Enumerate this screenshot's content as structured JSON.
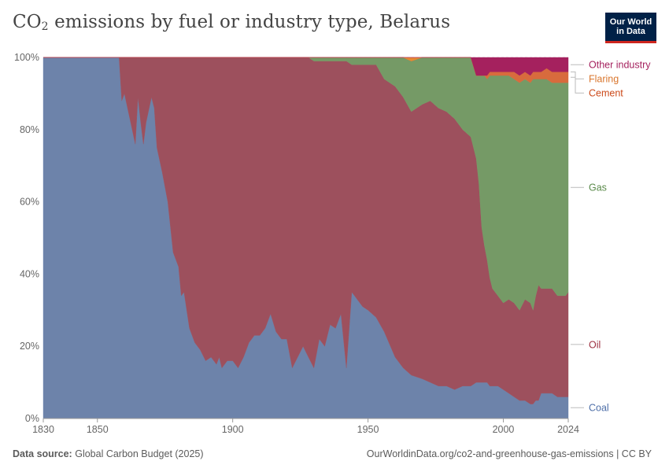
{
  "header": {
    "title_main": "CO",
    "title_sub": "2",
    "title_rest": " emissions by fuel or industry type, Belarus",
    "logo_line1": "Our World",
    "logo_line2": "in Data"
  },
  "footer": {
    "source_label": "Data source:",
    "source_text": "Global Carbon Budget (2025)",
    "url_license": "OurWorldinData.org/co2-and-greenhouse-gas-emissions | CC BY"
  },
  "chart_data": {
    "type": "area",
    "stacked": true,
    "normalized": true,
    "title": "CO₂ emissions by fuel or industry type, Belarus",
    "xlim": [
      1830,
      2024
    ],
    "ylim": [
      0,
      100
    ],
    "x_ticks": [
      1830,
      1850,
      1900,
      1950,
      2000,
      2024
    ],
    "y_ticks": [
      {
        "value": 0,
        "label": "0%"
      },
      {
        "value": 20,
        "label": "20%"
      },
      {
        "value": 40,
        "label": "40%"
      },
      {
        "value": 60,
        "label": "60%"
      },
      {
        "value": 80,
        "label": "80%"
      },
      {
        "value": 100,
        "label": "100%"
      }
    ],
    "x": [
      1830,
      1858,
      1859,
      1860,
      1862,
      1864,
      1865,
      1866,
      1867,
      1868,
      1870,
      1871,
      1872,
      1874,
      1876,
      1878,
      1880,
      1881,
      1882,
      1884,
      1886,
      1888,
      1890,
      1892,
      1894,
      1895,
      1896,
      1898,
      1900,
      1902,
      1904,
      1906,
      1908,
      1910,
      1912,
      1914,
      1916,
      1918,
      1920,
      1922,
      1924,
      1926,
      1928,
      1930,
      1932,
      1934,
      1936,
      1938,
      1940,
      1942,
      1944,
      1945,
      1946,
      1948,
      1950,
      1953,
      1956,
      1960,
      1963,
      1966,
      1970,
      1973,
      1976,
      1979,
      1982,
      1985,
      1988,
      1990,
      1991,
      1992,
      1993,
      1994,
      1995,
      1996,
      1998,
      2000,
      2002,
      2004,
      2006,
      2008,
      2010,
      2011,
      2012,
      2013,
      2014,
      2016,
      2018,
      2020,
      2022,
      2023,
      2024
    ],
    "series": [
      {
        "name": "Coal",
        "color": "#6d83aa",
        "values": [
          100,
          100,
          88,
          90,
          83,
          76,
          89,
          82,
          76,
          82,
          89,
          86,
          75,
          68,
          60,
          46,
          42,
          34,
          35,
          25,
          21,
          19,
          16,
          17,
          15,
          17,
          14,
          16,
          16,
          14,
          17,
          21,
          23,
          23,
          25,
          29,
          24,
          22,
          22,
          14,
          17,
          20,
          17,
          14,
          22,
          20,
          26,
          25,
          29,
          14,
          35,
          34,
          33,
          31,
          30,
          28,
          24,
          17,
          14,
          12,
          11,
          10,
          9,
          9,
          8,
          9,
          9,
          10,
          10,
          10,
          10,
          10,
          9,
          9,
          9,
          8,
          7,
          6,
          5,
          5,
          4,
          4,
          5,
          5,
          7,
          7,
          7,
          6,
          6,
          6,
          6
        ]
      },
      {
        "name": "Oil",
        "color": "#9d505d",
        "values": [
          0,
          0,
          12,
          10,
          17,
          24,
          11,
          18,
          24,
          18,
          11,
          14,
          25,
          32,
          40,
          54,
          58,
          66,
          65,
          75,
          79,
          81,
          84,
          83,
          85,
          83,
          86,
          84,
          84,
          86,
          83,
          79,
          77,
          77,
          75,
          71,
          76,
          78,
          78,
          86,
          83,
          80,
          83,
          85,
          77,
          79,
          73,
          74,
          70,
          85,
          63,
          64,
          65,
          67,
          68,
          70,
          70,
          75,
          75,
          73,
          76,
          78,
          77,
          76,
          75,
          71,
          69,
          62,
          55,
          43,
          38,
          34,
          30,
          27,
          25,
          24,
          26,
          26,
          25,
          28,
          28,
          26,
          29,
          32,
          29,
          29,
          29,
          28,
          28,
          28,
          29
        ]
      },
      {
        "name": "Gas",
        "color": "#759a66",
        "values": [
          0,
          0,
          0,
          0,
          0,
          0,
          0,
          0,
          0,
          0,
          0,
          0,
          0,
          0,
          0,
          0,
          0,
          0,
          0,
          0,
          0,
          0,
          0,
          0,
          0,
          0,
          0,
          0,
          0,
          0,
          0,
          0,
          0,
          0,
          0,
          0,
          0,
          0,
          0,
          0,
          0,
          0,
          0,
          1,
          1,
          1,
          1,
          1,
          1,
          1,
          2,
          2,
          2,
          2,
          2,
          2,
          6,
          8,
          11,
          14,
          13,
          12,
          14,
          15,
          17,
          20,
          22,
          23,
          30,
          42,
          47,
          50,
          56,
          59,
          61,
          63,
          62,
          62,
          63,
          61,
          61,
          64,
          60,
          57,
          58,
          58,
          57,
          59,
          59,
          59,
          58
        ]
      },
      {
        "name": "Cement",
        "color": "#d86b3d",
        "values": [
          0,
          0,
          0,
          0,
          0,
          0,
          0,
          0,
          0,
          0,
          0,
          0,
          0,
          0,
          0,
          0,
          0,
          0,
          0,
          0,
          0,
          0,
          0,
          0,
          0,
          0,
          0,
          0,
          0,
          0,
          0,
          0,
          0,
          0,
          0,
          0,
          0,
          0,
          0,
          0,
          0,
          0,
          0,
          0,
          0,
          0,
          0,
          0,
          0,
          0,
          0,
          0,
          0,
          0,
          0,
          0,
          0,
          0,
          0,
          0,
          0,
          0,
          0,
          0,
          0,
          0,
          0,
          0,
          0,
          0,
          0,
          1,
          1,
          1,
          1,
          1,
          1,
          2,
          2,
          2,
          2,
          2,
          2,
          2,
          2,
          3,
          3,
          3,
          3,
          3,
          3
        ]
      },
      {
        "name": "Flaring",
        "color": "#e68a33",
        "values": [
          0,
          0,
          0,
          0,
          0,
          0,
          0,
          0,
          0,
          0,
          0,
          0,
          0,
          0,
          0,
          0,
          0,
          0,
          0,
          0,
          0,
          0,
          0,
          0,
          0,
          0,
          0,
          0,
          0,
          0,
          0,
          0,
          0,
          0,
          0,
          0,
          0,
          0,
          0,
          0,
          0,
          0,
          0,
          0,
          0,
          0,
          0,
          0,
          0,
          0,
          0,
          0,
          0,
          0,
          0,
          0,
          0,
          0,
          0,
          1,
          0,
          0,
          0,
          0,
          0,
          0,
          0,
          0,
          0,
          0,
          0,
          0,
          0,
          0,
          0,
          0,
          0,
          0,
          0,
          0,
          0,
          0,
          0,
          0,
          0,
          0,
          0,
          0,
          0,
          0,
          0
        ]
      },
      {
        "name": "Other industry",
        "color": "#a5215e",
        "values": [
          0,
          0,
          0,
          0,
          0,
          0,
          0,
          0,
          0,
          0,
          0,
          0,
          0,
          0,
          0,
          0,
          0,
          0,
          0,
          0,
          0,
          0,
          0,
          0,
          0,
          0,
          0,
          0,
          0,
          0,
          0,
          0,
          0,
          0,
          0,
          0,
          0,
          0,
          0,
          0,
          0,
          0,
          0,
          0,
          0,
          0,
          0,
          0,
          0,
          0,
          0,
          0,
          0,
          0,
          0,
          0,
          0,
          0,
          0,
          0,
          0,
          0,
          0,
          0,
          0,
          0,
          0,
          5,
          5,
          5,
          5,
          5,
          4,
          4,
          4,
          4,
          4,
          4,
          5,
          4,
          5,
          4,
          4,
          4,
          4,
          3,
          4,
          4,
          4,
          4,
          4
        ]
      }
    ],
    "legend": [
      {
        "name": "Other industry",
        "color": "#a5215e"
      },
      {
        "name": "Flaring",
        "color": "#d9762d"
      },
      {
        "name": "Cement",
        "color": "#cc4a1a"
      },
      {
        "name": "Gas",
        "color": "#5a8a4a"
      },
      {
        "name": "Oil",
        "color": "#9d3040"
      },
      {
        "name": "Coal",
        "color": "#4e6fa8"
      }
    ],
    "legend_position": "right"
  }
}
